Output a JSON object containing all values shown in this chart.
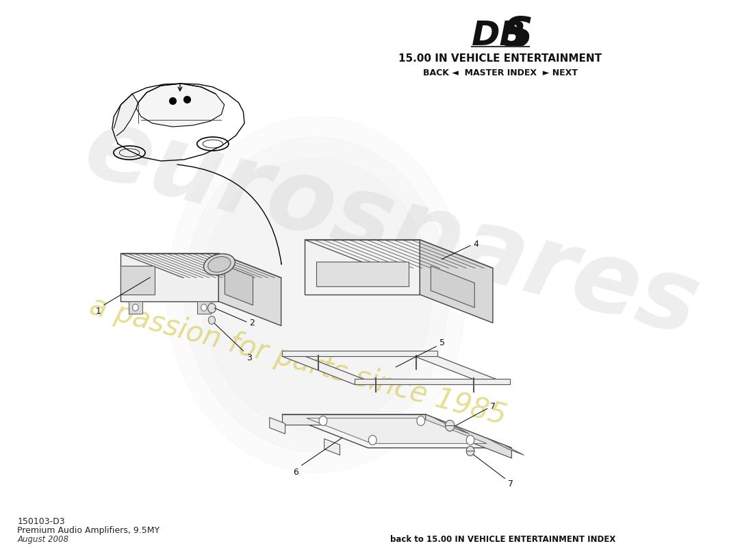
{
  "title_model": "DBS",
  "title_section": "15.00 IN VEHICLE ENTERTAINMENT",
  "nav_text": "BACK ◄  MASTER INDEX  ► NEXT",
  "part_number": "150103-D3",
  "part_name": "Premium Audio Amplifiers, 9.5MY",
  "part_date": "August 2008",
  "footer_text": "back to 15.00 IN VEHICLE ENTERTAINMENT INDEX",
  "bg_color": "#ffffff",
  "watermark_color": "#c8c8c8",
  "watermark_sub_color": "#d4c84a"
}
